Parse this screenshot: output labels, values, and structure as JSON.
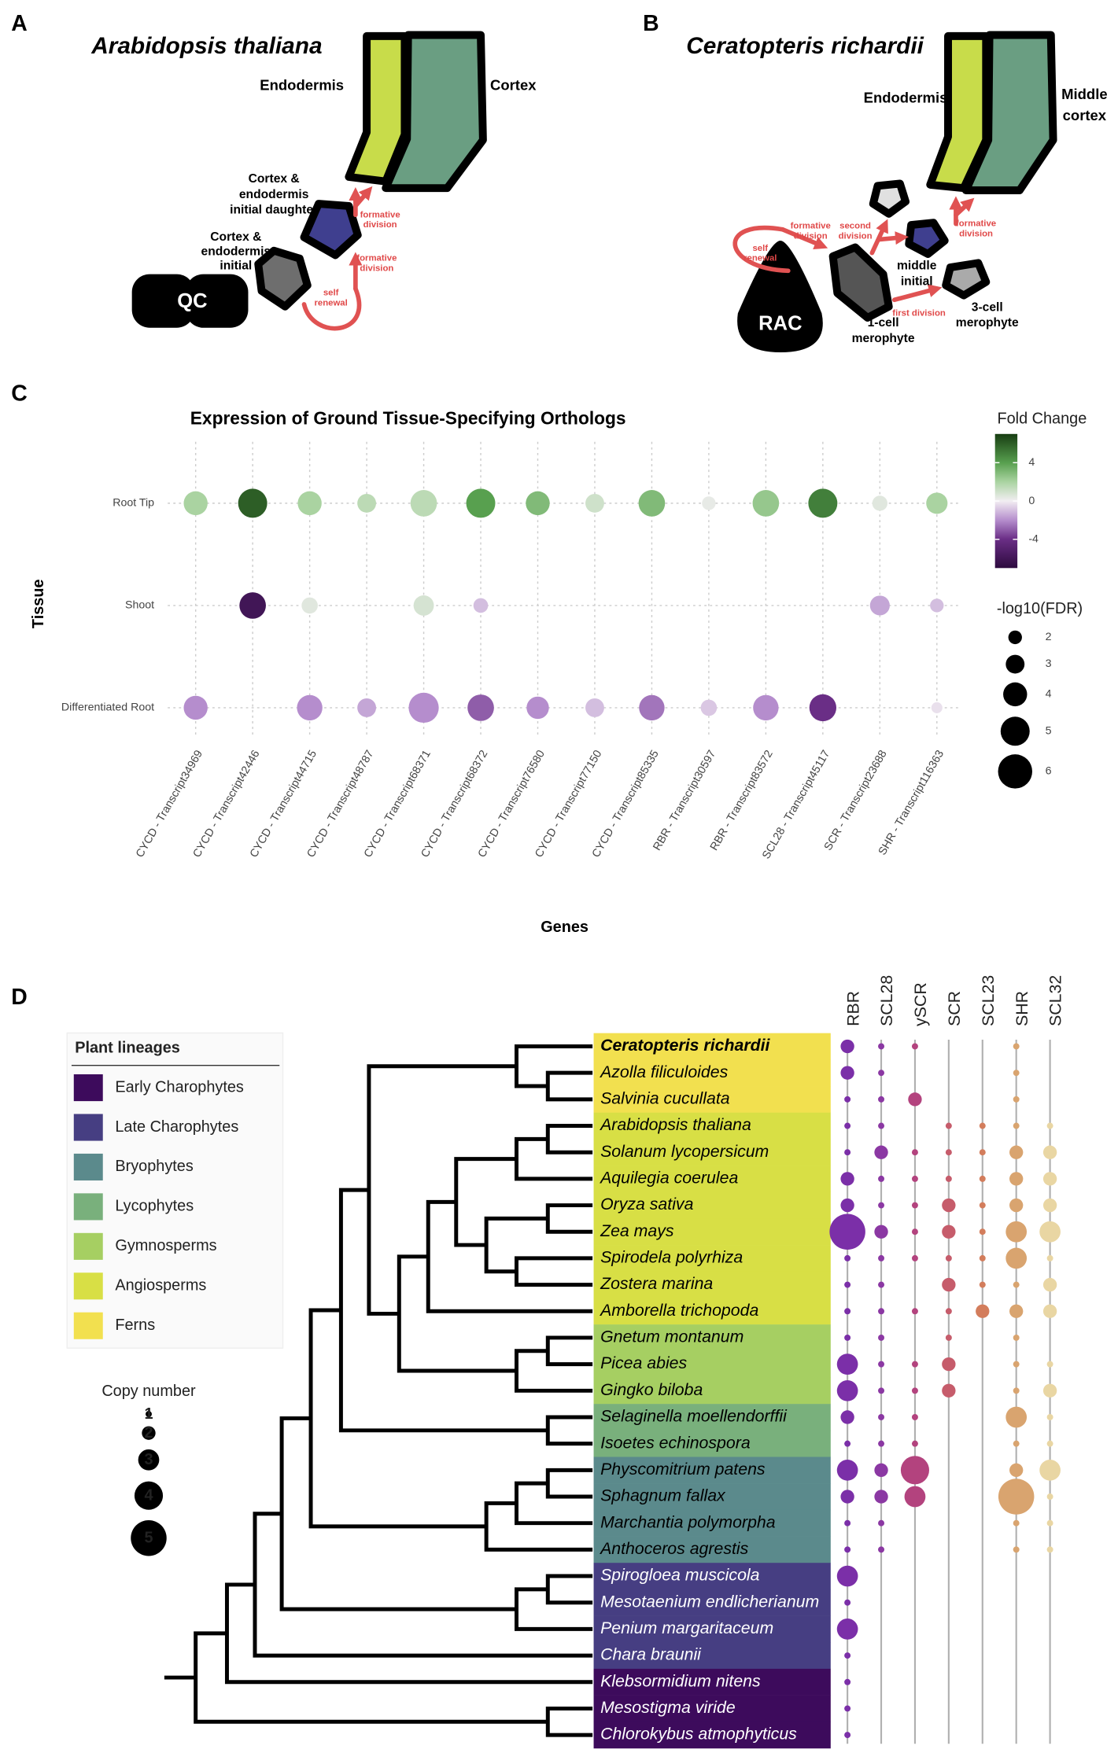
{
  "panel_a": {
    "letter": "A",
    "title": "Arabidopsis thaliana",
    "labels": {
      "endodermis": "Endodermis",
      "cortex": "Cortex",
      "initial_daughter": [
        "Cortex &",
        "endodermis",
        "initial daughter"
      ],
      "initial": [
        "Cortex &",
        "endodermis",
        "initial"
      ],
      "qc": "QC",
      "formative_upper": [
        "formative",
        "division"
      ],
      "formative_lower": [
        "formative",
        "division"
      ],
      "self_renewal": [
        "self",
        "renewal"
      ]
    }
  },
  "panel_b": {
    "letter": "B",
    "title": "Ceratopteris richardii",
    "labels": {
      "endodermis": "Endodermis",
      "middle_cortex": [
        "Middle",
        "cortex"
      ],
      "formative_upper": [
        "formative",
        "division"
      ],
      "formative_lower": [
        "formative",
        "division"
      ],
      "second_division": [
        "second",
        "division"
      ],
      "self_renewal": [
        "self",
        "renewal"
      ],
      "rac": "RAC",
      "middle_initial": [
        "middle",
        "initial"
      ],
      "one_cell": [
        "1-cell",
        "merophyte"
      ],
      "first_division": "first division",
      "three_cell": [
        "3-cell",
        "merophyte"
      ]
    }
  },
  "chart_data": [
    {
      "type": "bubble",
      "panel": "C",
      "title": "Expression of Ground Tissue-Specifying Orthologs",
      "x_label": "Genes",
      "y_label": "Tissue",
      "grid": true,
      "categories": [
        "CYCD - Transcript34969",
        "CYCD - Transcript42446",
        "CYCD - Transcript44715",
        "CYCD - Transcript48787",
        "CYCD - Transcript68371",
        "CYCD - Transcript68372",
        "CYCD - Transcript76580",
        "CYCD - Transcript77150",
        "CYCD - Transcript85335",
        "RBR - Transcript30597",
        "RBR - Transcript83572",
        "SCL28 - Transcript45117",
        "SCR - Transcript23688",
        "SHR - Transcript116363"
      ],
      "series": [
        {
          "name": "Root Tip",
          "values": [
            2,
            6,
            2,
            1.5,
            1.5,
            4,
            3,
            1,
            3,
            0.3,
            2.5,
            5,
            0.5,
            2
          ],
          "sizes": [
            4,
            5,
            4,
            3,
            4.5,
            5,
            4,
            3,
            4.5,
            2,
            4.5,
            5,
            2.3,
            3.5
          ]
        },
        {
          "name": "Shoot",
          "values": [
            null,
            -6,
            0.5,
            null,
            0.8,
            -1,
            null,
            null,
            null,
            null,
            null,
            null,
            -1.5,
            -1
          ],
          "sizes": [
            null,
            4.5,
            2.5,
            null,
            3.3,
            2.2,
            null,
            null,
            null,
            null,
            null,
            null,
            3.2,
            2
          ]
        },
        {
          "name": "Differentiated Root",
          "values": [
            -2,
            null,
            -2,
            -1.5,
            -2,
            -3,
            -2,
            -1,
            -2.5,
            -0.8,
            -2,
            -4,
            null,
            -0.3
          ],
          "sizes": [
            4,
            null,
            4.3,
            3,
            5.2,
            4.5,
            3.7,
            3,
            4.3,
            2.5,
            4.3,
            4.6,
            null,
            1.5
          ]
        }
      ],
      "color_legend": {
        "title": "Fold Change",
        "clim": [
          -7,
          7
        ],
        "ticks": [
          4,
          0,
          -4
        ]
      },
      "size_legend": {
        "title": "-log10(FDR)",
        "values": [
          2,
          3,
          4,
          5,
          6
        ]
      }
    },
    {
      "type": "dot-matrix",
      "panel": "D",
      "species": [
        {
          "name": "Ceratopteris richardii",
          "lineage": "Ferns"
        },
        {
          "name": "Azolla filiculoides",
          "lineage": "Ferns"
        },
        {
          "name": "Salvinia cucullata",
          "lineage": "Ferns"
        },
        {
          "name": "Arabidopsis thaliana",
          "lineage": "Angiosperms"
        },
        {
          "name": "Solanum lycopersicum",
          "lineage": "Angiosperms"
        },
        {
          "name": "Aquilegia coerulea",
          "lineage": "Angiosperms"
        },
        {
          "name": "Oryza sativa",
          "lineage": "Angiosperms"
        },
        {
          "name": "Zea mays",
          "lineage": "Angiosperms"
        },
        {
          "name": "Spirodela polyrhiza",
          "lineage": "Angiosperms"
        },
        {
          "name": "Zostera marina",
          "lineage": "Angiosperms"
        },
        {
          "name": "Amborella trichopoda",
          "lineage": "Angiosperms"
        },
        {
          "name": "Gnetum montanum",
          "lineage": "Gymnosperms"
        },
        {
          "name": "Picea abies",
          "lineage": "Gymnosperms"
        },
        {
          "name": "Gingko biloba",
          "lineage": "Gymnosperms"
        },
        {
          "name": "Selaginella moellendorffii",
          "lineage": "Lycophytes"
        },
        {
          "name": "Isoetes echinospora",
          "lineage": "Lycophytes"
        },
        {
          "name": "Physcomitrium patens",
          "lineage": "Bryophytes"
        },
        {
          "name": "Sphagnum fallax",
          "lineage": "Bryophytes"
        },
        {
          "name": "Marchantia polymorpha",
          "lineage": "Bryophytes"
        },
        {
          "name": "Anthoceros agrestis",
          "lineage": "Bryophytes"
        },
        {
          "name": "Spirogloea muscicola",
          "lineage": "Late Charophytes"
        },
        {
          "name": "Mesotaenium endlicherianum",
          "lineage": "Late Charophytes"
        },
        {
          "name": "Penium margaritaceum",
          "lineage": "Late Charophytes"
        },
        {
          "name": "Chara braunii",
          "lineage": "Late Charophytes"
        },
        {
          "name": "Klebsormidium nitens",
          "lineage": "Early Charophytes"
        },
        {
          "name": "Mesostigma viride",
          "lineage": "Early Charophytes"
        },
        {
          "name": "Chlorokybus atmophyticus",
          "lineage": "Early Charophytes"
        }
      ],
      "series": [
        {
          "name": "RBR",
          "color": "#7b2fa8",
          "values": [
            2,
            2,
            1,
            1,
            1,
            2,
            2,
            5,
            1,
            1,
            1,
            1,
            3,
            3,
            2,
            1,
            3,
            2,
            1,
            1,
            3,
            1,
            3,
            1,
            1,
            1,
            1
          ]
        },
        {
          "name": "SCL28",
          "color": "#8b38a3",
          "values": [
            1,
            1,
            1,
            1,
            2,
            1,
            1,
            2,
            1,
            1,
            1,
            1,
            1,
            1,
            1,
            1,
            2,
            2,
            1,
            1,
            null,
            null,
            null,
            null,
            null,
            null,
            null
          ]
        },
        {
          "name": "ySCR",
          "color": "#b3437e",
          "values": [
            1,
            null,
            2,
            null,
            1,
            1,
            1,
            1,
            1,
            null,
            1,
            null,
            1,
            1,
            1,
            1,
            4,
            3,
            null,
            null,
            null,
            null,
            null,
            null,
            null,
            null,
            null
          ]
        },
        {
          "name": "SCR",
          "color": "#c65c6b",
          "values": [
            null,
            null,
            null,
            1,
            1,
            1,
            2,
            2,
            1,
            2,
            1,
            1,
            2,
            2,
            null,
            null,
            null,
            null,
            null,
            null,
            null,
            null,
            null,
            null,
            null,
            null,
            null
          ]
        },
        {
          "name": "SCL23",
          "color": "#d37d5c",
          "values": [
            null,
            null,
            null,
            1,
            1,
            1,
            1,
            1,
            1,
            1,
            2,
            null,
            null,
            null,
            null,
            null,
            null,
            null,
            null,
            null,
            null,
            null,
            null,
            null,
            null,
            null,
            null
          ]
        },
        {
          "name": "SHR",
          "color": "#d9a46f",
          "values": [
            1,
            1,
            1,
            1,
            2,
            2,
            2,
            3,
            3,
            1,
            2,
            1,
            1,
            1,
            3,
            1,
            2,
            5,
            1,
            1,
            null,
            null,
            null,
            null,
            null,
            null,
            null
          ]
        },
        {
          "name": "SCL32",
          "color": "#e9d6a3",
          "values": [
            null,
            null,
            null,
            1,
            2,
            2,
            2,
            3,
            1,
            2,
            2,
            null,
            1,
            2,
            1,
            1,
            3,
            1,
            1,
            1,
            null,
            null,
            null,
            null,
            null,
            null,
            null
          ]
        }
      ],
      "lineage_legend": {
        "title": "Plant lineages",
        "items": [
          {
            "name": "Early Charophytes",
            "color": "#3d0b5c"
          },
          {
            "name": "Late Charophytes",
            "color": "#463e82"
          },
          {
            "name": "Bryophytes",
            "color": "#5b8a8c"
          },
          {
            "name": "Lycophytes",
            "color": "#79b07c"
          },
          {
            "name": "Gymnosperms",
            "color": "#a6cf62"
          },
          {
            "name": "Angiosperms",
            "color": "#d8df45"
          },
          {
            "name": "Ferns",
            "color": "#f2e04f"
          }
        ]
      },
      "size_legend": {
        "title": "Copy number",
        "values": [
          1,
          2,
          3,
          4,
          5
        ]
      }
    }
  ]
}
